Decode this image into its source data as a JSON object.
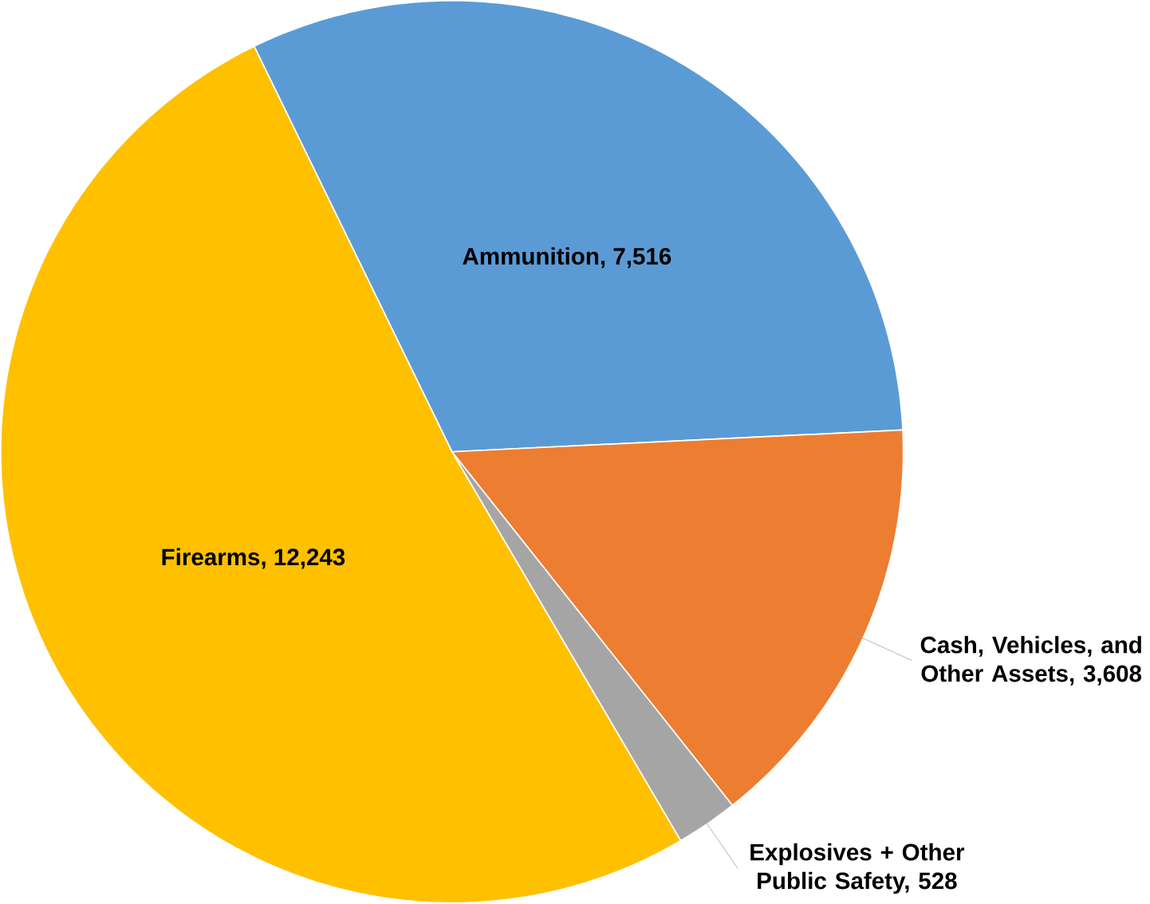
{
  "chart_data": {
    "type": "pie",
    "categories": [
      "Ammunition, 7,516",
      "Cash, Vehicles, and Other Assets, 3,608",
      "Explosives + Other Public Safety, 528",
      "Firearms, 12,243"
    ],
    "values": [
      7516,
      3608,
      528,
      12243
    ],
    "colors": [
      "#5b9bd5",
      "#ed7d31",
      "#a5a5a5",
      "#ffc000"
    ]
  }
}
